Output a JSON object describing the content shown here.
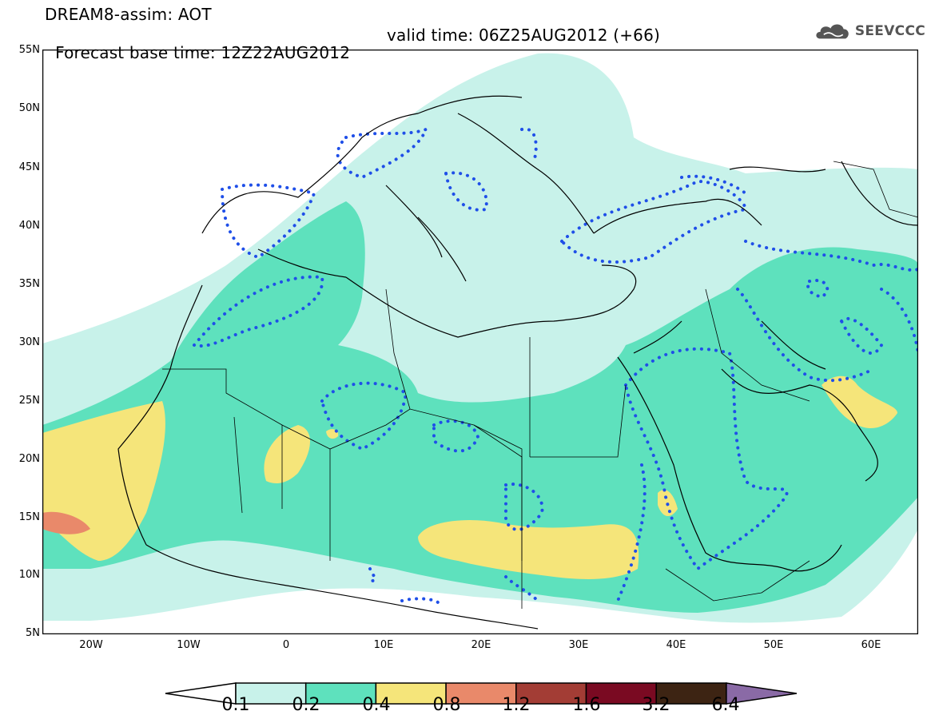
{
  "header": {
    "title": "DREAM8-assim: AOT",
    "base_time": "Forecast base time: 12Z22AUG2012",
    "valid_time": "valid time: 06Z25AUG2012 (+66)"
  },
  "logo": {
    "text": "SEEVCCC",
    "icon": "cloud-icon"
  },
  "map": {
    "lat_labels": [
      "55N",
      "50N",
      "45N",
      "40N",
      "35N",
      "30N",
      "25N",
      "20N",
      "15N",
      "10N",
      "5N"
    ],
    "lon_labels": [
      "20W",
      "10W",
      "0",
      "10E",
      "20E",
      "30E",
      "40E",
      "50E",
      "60E"
    ],
    "extent": {
      "lon": [
        -25,
        65
      ],
      "lat": [
        5,
        55
      ]
    }
  },
  "legend": {
    "levels": [
      "0.1",
      "0.2",
      "0.4",
      "0.8",
      "1.2",
      "1.6",
      "3.2",
      "6.4"
    ],
    "colors": [
      "#ffffff",
      "#c8f2ea",
      "#5ee1bd",
      "#f5e57a",
      "#e9896a",
      "#a33d35",
      "#7a0a22",
      "#3d2413",
      "#8a6aa6"
    ],
    "dotted_contour_color": "#1f4fe8",
    "coastline_color": "#000000"
  }
}
